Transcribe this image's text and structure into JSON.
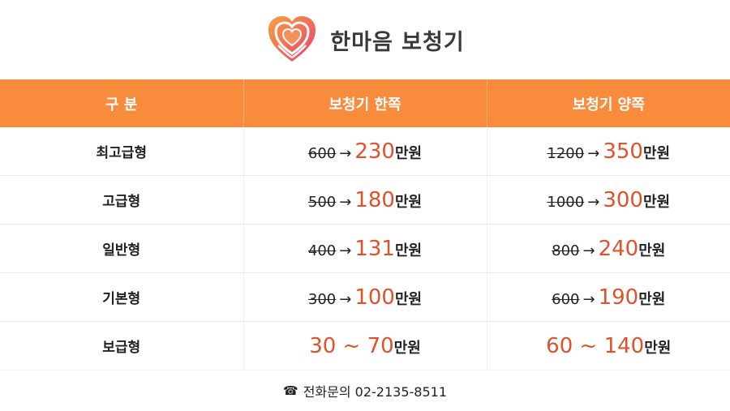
{
  "brand": {
    "name": "한마음 보청기",
    "logo_icon": "heart-logo-icon",
    "accent": "#f98b3c"
  },
  "table": {
    "headers": [
      "구 분",
      "보청기 한쪽",
      "보청기 양쪽"
    ],
    "unit": "만원",
    "arrow": "→",
    "rows": [
      {
        "grade": "최고급형",
        "single": {
          "old": "600",
          "new": "230"
        },
        "pair": {
          "old": "1200",
          "new": "350"
        }
      },
      {
        "grade": "고급형",
        "single": {
          "old": "500",
          "new": "180"
        },
        "pair": {
          "old": "1000",
          "new": "300"
        }
      },
      {
        "grade": "일반형",
        "single": {
          "old": "400",
          "new": "131"
        },
        "pair": {
          "old": "800",
          "new": "240"
        }
      },
      {
        "grade": "기본형",
        "single": {
          "old": "300",
          "new": "100"
        },
        "pair": {
          "old": "600",
          "new": "190"
        }
      }
    ],
    "basic": {
      "grade": "보급형",
      "single_range": "30 ~ 70",
      "pair_range": "60 ~ 140"
    }
  },
  "footer": {
    "phone_icon": "☎",
    "contact": "전화문의 02-2135-8511"
  },
  "colors": {
    "header_bg": "#f98b3c",
    "price_highlight": "#e0522a"
  }
}
